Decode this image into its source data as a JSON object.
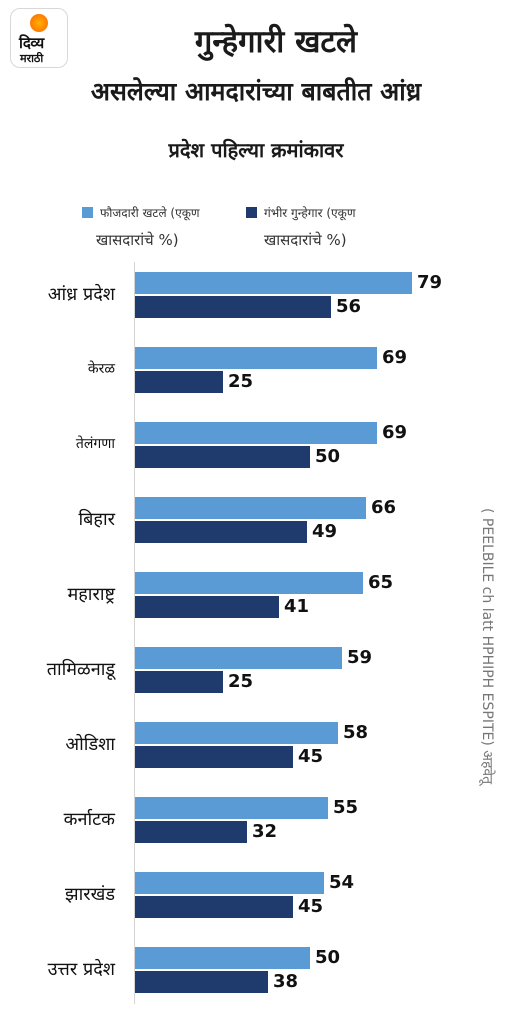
{
  "logo": {
    "line1": "दिव्य",
    "line2": "मराठी"
  },
  "header": {
    "title": "गुन्हेगारी खटले",
    "subtitle_line1": "असलेल्या आमदारांच्या बाबतीत आंध्र",
    "subtitle_line2": "प्रदेश पहिल्या क्रमांकावर"
  },
  "legend": [
    {
      "line1": "फौजदारी खटले (एकूण",
      "line2": "खासदारांचे %)",
      "color": "#5b9bd5"
    },
    {
      "line1": "गंभीर गुन्हेगार (एकूण",
      "line2": "खासदारांचे %)",
      "color": "#1f3a6d"
    }
  ],
  "side_note": "( PEELBILE ch latt HPHIPH ESPITE) अहवेतू",
  "chart_data": {
    "type": "bar",
    "orientation": "horizontal",
    "categories": [
      "आंध्र प्रदेश",
      "केरळ",
      "तेलंगणा",
      "बिहार",
      "महाराष्ट्र",
      "तामिळनाडू",
      "ओडिशा",
      "कर्नाटक",
      "झारखंड",
      "उत्तर प्रदेश"
    ],
    "series": [
      {
        "name": "फौजदारी खटले (एकूण खासदारांचे %)",
        "color": "#5b9bd5",
        "values": [
          79,
          69,
          69,
          66,
          65,
          59,
          58,
          55,
          54,
          50
        ]
      },
      {
        "name": "गंभीर गुन्हेगार (एकूण खासदारांचे %)",
        "color": "#1f3a6d",
        "values": [
          56,
          25,
          50,
          49,
          41,
          25,
          45,
          32,
          45,
          38
        ]
      }
    ],
    "xlim": [
      0,
      79
    ],
    "grid": false,
    "legend_position": "top"
  }
}
